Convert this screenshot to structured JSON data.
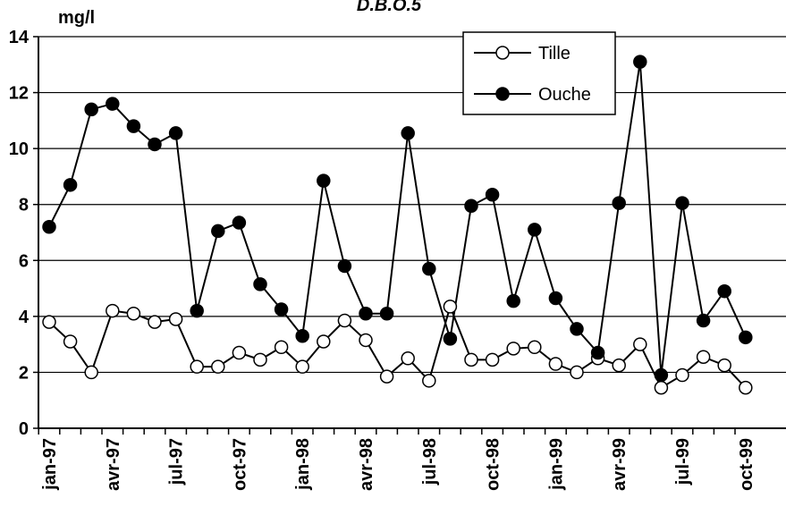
{
  "chart_data": {
    "type": "line",
    "title": "D.B.O.5",
    "y_label": "mg/l",
    "categories": [
      "jan-97",
      null,
      null,
      "avr-97",
      null,
      null,
      "jul-97",
      null,
      null,
      "oct-97",
      null,
      null,
      "jan-98",
      null,
      null,
      "avr-98",
      null,
      null,
      "jul-98",
      null,
      null,
      "oct-98",
      null,
      null,
      "jan-99",
      null,
      null,
      "avr-99",
      null,
      null,
      "jul-99",
      null,
      null,
      "oct-99"
    ],
    "series": [
      {
        "name": "Tille",
        "color": "#000000",
        "marker_fill": "#ffffff",
        "values": [
          3.8,
          3.1,
          2.0,
          4.2,
          4.1,
          3.8,
          3.9,
          2.2,
          2.2,
          2.7,
          2.45,
          2.9,
          2.2,
          3.1,
          3.85,
          3.15,
          1.85,
          2.5,
          1.7,
          4.35,
          2.45,
          2.45,
          2.85,
          2.9,
          2.3,
          2.0,
          2.5,
          2.25,
          3.0,
          1.45,
          1.9,
          2.55,
          2.25,
          1.45
        ]
      },
      {
        "name": "Ouche",
        "color": "#000000",
        "marker_fill": "#000000",
        "values": [
          7.2,
          8.7,
          11.4,
          11.6,
          10.8,
          10.15,
          10.55,
          4.2,
          7.05,
          7.35,
          5.15,
          4.25,
          3.3,
          8.85,
          5.8,
          4.1,
          4.1,
          10.55,
          5.7,
          3.2,
          7.95,
          8.35,
          4.55,
          7.1,
          4.65,
          3.55,
          2.7,
          8.05,
          13.1,
          1.9,
          8.05,
          3.85,
          4.9,
          3.25
        ]
      }
    ],
    "ylim": [
      0,
      14
    ],
    "yticks": [
      0,
      2,
      4,
      6,
      8,
      10,
      12,
      14
    ],
    "grid": true,
    "legend": "upper right"
  }
}
